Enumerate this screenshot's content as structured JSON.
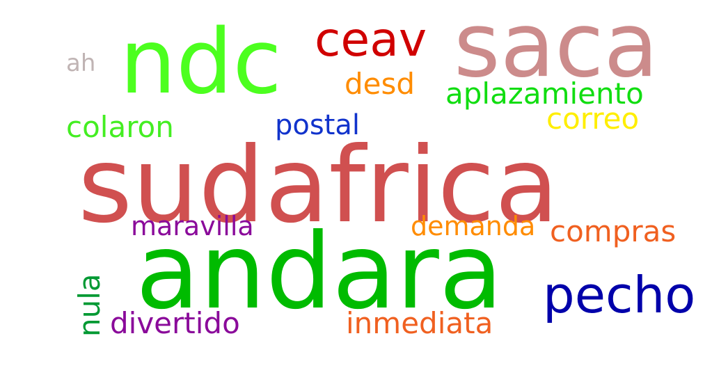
{
  "words": [
    {
      "id": "sudafrica",
      "text": "sudafrica",
      "color": "#d05050"
    },
    {
      "id": "andara",
      "text": "andara",
      "color": "#00bb00"
    },
    {
      "id": "saca",
      "text": "saca",
      "color": "#cc8b8b"
    },
    {
      "id": "ndc",
      "text": "ndc",
      "color": "#4cff1f"
    },
    {
      "id": "ceav",
      "text": "ceav",
      "color": "#d00000"
    },
    {
      "id": "pecho",
      "text": "pecho",
      "color": "#0000aa"
    },
    {
      "id": "aplazamiento",
      "text": "aplazamiento",
      "color": "#11dd11"
    },
    {
      "id": "compras",
      "text": "compras",
      "color": "#f06020"
    },
    {
      "id": "inmediata",
      "text": "inmediata",
      "color": "#f06020"
    },
    {
      "id": "divertido",
      "text": "divertido",
      "color": "#8a0a9a"
    },
    {
      "id": "colaron",
      "text": "colaron",
      "color": "#44ee22"
    },
    {
      "id": "maravilla",
      "text": "maravilla",
      "color": "#8a0a9a"
    },
    {
      "id": "demanda",
      "text": "demanda",
      "color": "#ff8c00"
    },
    {
      "id": "desd",
      "text": "desd",
      "color": "#ff8c00"
    },
    {
      "id": "correo",
      "text": "correo",
      "color": "#ffee00"
    },
    {
      "id": "postal",
      "text": "postal",
      "color": "#1133cc"
    },
    {
      "id": "ah",
      "text": "ah",
      "color": "#c0b4b4"
    },
    {
      "id": "nula",
      "text": "nula",
      "color": "#009933"
    }
  ]
}
